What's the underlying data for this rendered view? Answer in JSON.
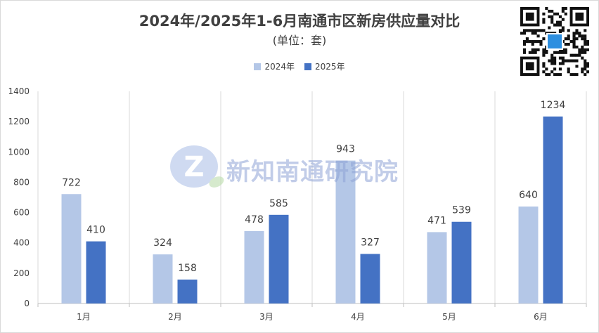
{
  "header": {
    "title": "2024年/2025年1-6月南通市区新房供应量对比",
    "subtitle": "(单位：套)"
  },
  "watermark": {
    "text": "新知南通研究院"
  },
  "colors": {
    "series_2024": "#b4c7e7",
    "series_2025": "#4472c4",
    "gridline": "#d9d9d9",
    "text": "#404040"
  },
  "chart_data": {
    "type": "bar",
    "categories": [
      "1月",
      "2月",
      "3月",
      "4月",
      "5月",
      "6月"
    ],
    "series": [
      {
        "name": "2024年",
        "values": [
          722,
          324,
          478,
          943,
          471,
          640
        ]
      },
      {
        "name": "2025年",
        "values": [
          410,
          158,
          585,
          327,
          539,
          1234
        ]
      }
    ],
    "ylim": [
      0,
      1400
    ],
    "yticks": [
      0,
      200,
      400,
      600,
      800,
      1000,
      1200,
      1400
    ],
    "legend": "top-center",
    "grid": "vertical category separators"
  }
}
